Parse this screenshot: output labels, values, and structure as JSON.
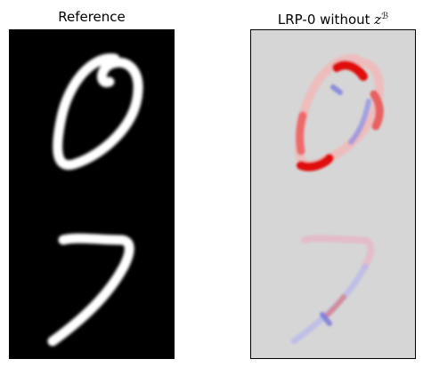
{
  "panels": {
    "left": {
      "title": "Reference",
      "description_colors": {
        "background": "#000000",
        "stroke": "#ffffff"
      }
    },
    "right": {
      "title_main": "LRP-0 without ",
      "title_var": "z",
      "title_sup": "ℬ",
      "description_colors": {
        "background": "#d6d6d6",
        "positive": "#e00000",
        "negative": "#8a8ae6"
      }
    }
  }
}
